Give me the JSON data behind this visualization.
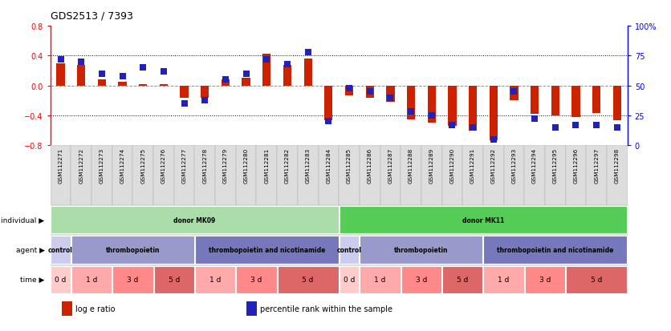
{
  "title": "GDS2513 / 7393",
  "samples": [
    "GSM112271",
    "GSM112272",
    "GSM112273",
    "GSM112274",
    "GSM112275",
    "GSM112276",
    "GSM112277",
    "GSM112278",
    "GSM112279",
    "GSM112280",
    "GSM112281",
    "GSM112282",
    "GSM112283",
    "GSM112284",
    "GSM112285",
    "GSM112286",
    "GSM112287",
    "GSM112288",
    "GSM112289",
    "GSM112290",
    "GSM112291",
    "GSM112292",
    "GSM112293",
    "GSM112294",
    "GSM112295",
    "GSM112296",
    "GSM112297",
    "GSM112298"
  ],
  "log_e_ratio": [
    0.3,
    0.27,
    0.08,
    0.05,
    0.02,
    0.02,
    -0.17,
    -0.16,
    0.08,
    0.1,
    0.43,
    0.27,
    0.36,
    -0.47,
    -0.13,
    -0.17,
    -0.22,
    -0.45,
    -0.5,
    -0.54,
    -0.6,
    -0.73,
    -0.2,
    -0.38,
    -0.4,
    -0.42,
    -0.37,
    -0.47
  ],
  "percentile": [
    72,
    70,
    60,
    58,
    65,
    62,
    35,
    38,
    55,
    60,
    72,
    68,
    78,
    20,
    48,
    45,
    40,
    28,
    25,
    17,
    15,
    5,
    45,
    22,
    15,
    17,
    17,
    15
  ],
  "bar_color": "#cc2200",
  "dot_color": "#2222bb",
  "ylim": [
    -0.8,
    0.8
  ],
  "y2lim": [
    0,
    100
  ],
  "yticks": [
    -0.8,
    -0.4,
    0.0,
    0.4,
    0.8
  ],
  "y2ticks": [
    0,
    25,
    50,
    75,
    100
  ],
  "bg_color": "#ffffff",
  "bar_width": 0.4,
  "dot_size": 28,
  "individual_groups": [
    {
      "text": "donor MK09",
      "start": 0,
      "end": 14,
      "color": "#aaddaa"
    },
    {
      "text": "donor MK11",
      "start": 14,
      "end": 28,
      "color": "#55cc55"
    }
  ],
  "agent_groups": [
    {
      "text": "control",
      "start": 0,
      "end": 1,
      "color": "#ccccee"
    },
    {
      "text": "thrombopoietin",
      "start": 1,
      "end": 7,
      "color": "#9999cc"
    },
    {
      "text": "thrombopoietin and nicotinamide",
      "start": 7,
      "end": 14,
      "color": "#7777bb"
    },
    {
      "text": "control",
      "start": 14,
      "end": 15,
      "color": "#ccccee"
    },
    {
      "text": "thrombopoietin",
      "start": 15,
      "end": 21,
      "color": "#9999cc"
    },
    {
      "text": "thrombopoietin and nicotinamide",
      "start": 21,
      "end": 28,
      "color": "#7777bb"
    }
  ],
  "time_cells": [
    {
      "text": "0 d",
      "color": "#ffcccc",
      "start": 0,
      "end": 1
    },
    {
      "text": "1 d",
      "color": "#ffaaaa",
      "start": 1,
      "end": 3
    },
    {
      "text": "3 d",
      "color": "#ff8888",
      "start": 3,
      "end": 5
    },
    {
      "text": "5 d",
      "color": "#dd6666",
      "start": 5,
      "end": 7
    },
    {
      "text": "1 d",
      "color": "#ffaaaa",
      "start": 7,
      "end": 9
    },
    {
      "text": "3 d",
      "color": "#ff8888",
      "start": 9,
      "end": 11
    },
    {
      "text": "5 d",
      "color": "#dd6666",
      "start": 11,
      "end": 14
    },
    {
      "text": "0 d",
      "color": "#ffcccc",
      "start": 14,
      "end": 15
    },
    {
      "text": "1 d",
      "color": "#ffaaaa",
      "start": 15,
      "end": 17
    },
    {
      "text": "3 d",
      "color": "#ff8888",
      "start": 17,
      "end": 19
    },
    {
      "text": "5 d",
      "color": "#dd6666",
      "start": 19,
      "end": 21
    },
    {
      "text": "1 d",
      "color": "#ffaaaa",
      "start": 21,
      "end": 23
    },
    {
      "text": "3 d",
      "color": "#ff8888",
      "start": 23,
      "end": 25
    },
    {
      "text": "5 d",
      "color": "#dd6666",
      "start": 25,
      "end": 28
    }
  ],
  "legend_items": [
    {
      "label": "log e ratio",
      "color": "#cc2200"
    },
    {
      "label": "percentile rank within the sample",
      "color": "#2222bb"
    }
  ]
}
